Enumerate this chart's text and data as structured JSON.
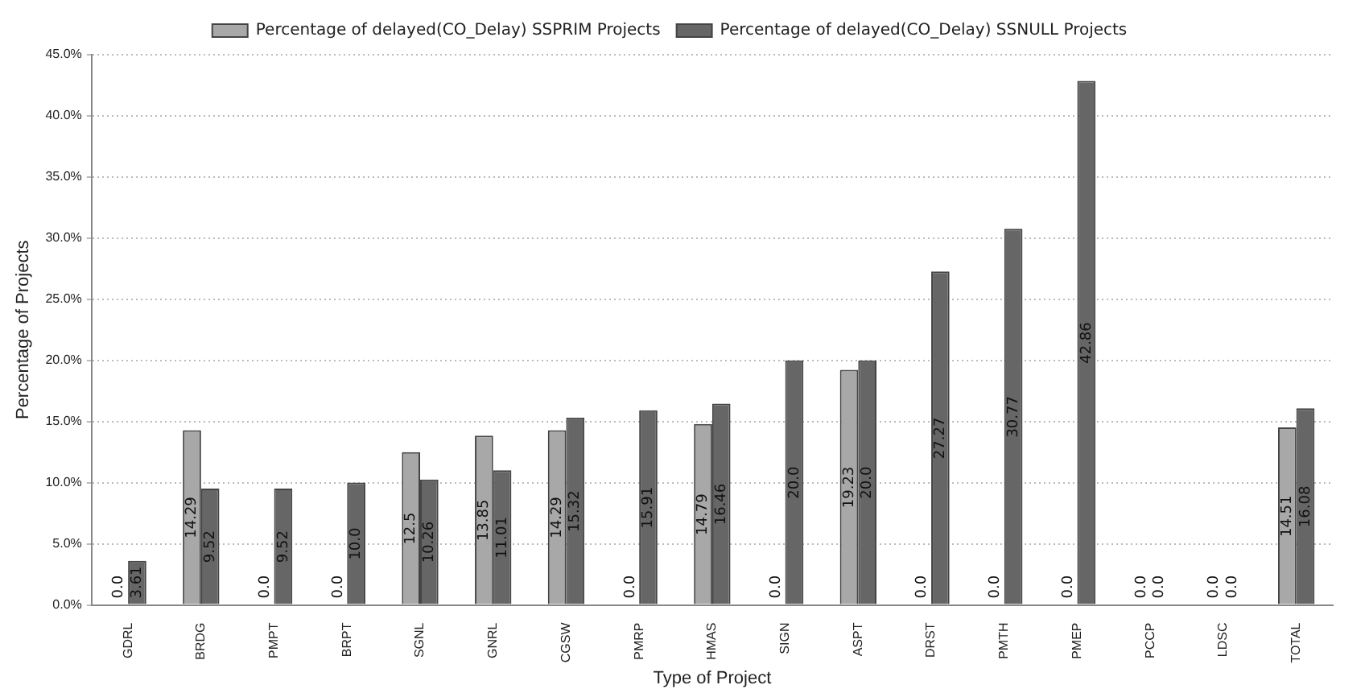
{
  "chart_data": {
    "type": "bar",
    "xlabel": "Type of Project",
    "ylabel": "Percentage of Projects",
    "categories": [
      "GDRL",
      "BRDG",
      "PMPT",
      "BRPT",
      "SGNL",
      "GNRL",
      "CGSW",
      "PMRP",
      "HMAS",
      "SIGN",
      "ASPT",
      "DRST",
      "PMTH",
      "PMEP",
      "PCCP",
      "LDSC",
      "TOTAL"
    ],
    "series": [
      {
        "name": "Percentage of delayed(CO_Delay) SSPRIM Projects",
        "color": "#a8a8a8",
        "values": [
          0,
          14.29,
          0,
          0,
          12.5,
          13.85,
          14.29,
          0,
          14.79,
          0,
          19.23,
          0,
          0,
          0,
          0,
          0,
          14.51
        ],
        "value_labels": [
          "0.0",
          "14.29",
          "0.0",
          "0.0",
          "12.5",
          "13.85",
          "14.29",
          "0.0",
          "14.79",
          "0.0",
          "19.23",
          "0.0",
          "0.0",
          "0.0",
          "0.0",
          "0.0",
          "14.51"
        ]
      },
      {
        "name": "Percentage of delayed(CO_Delay) SSNULL Projects",
        "color": "#666666",
        "values": [
          3.61,
          9.52,
          9.52,
          10.0,
          10.26,
          11.01,
          15.32,
          15.91,
          16.46,
          20.0,
          20.0,
          27.27,
          30.77,
          42.86,
          0,
          0,
          16.08
        ],
        "value_labels": [
          "3.61",
          "9.52",
          "9.52",
          "10.0",
          "10.26",
          "11.01",
          "15.32",
          "15.91",
          "16.46",
          "20.0",
          "20.0",
          "27.27",
          "30.77",
          "42.86",
          "0.0",
          "0.0",
          "16.08"
        ]
      }
    ],
    "ylim": [
      0,
      45
    ],
    "yticks": [
      {
        "value": 0,
        "label": "0.0%"
      },
      {
        "value": 5,
        "label": "5.0%"
      },
      {
        "value": 10,
        "label": "10.0%"
      },
      {
        "value": 15,
        "label": "15.0%"
      },
      {
        "value": 20,
        "label": "20.0%"
      },
      {
        "value": 25,
        "label": "25.0%"
      },
      {
        "value": 30,
        "label": "30.0%"
      },
      {
        "value": 35,
        "label": "35.0%"
      },
      {
        "value": 40,
        "label": "40.0%"
      },
      {
        "value": 45,
        "label": "45.0%"
      }
    ],
    "grid": "y",
    "legend": "top",
    "line_style": "dotted"
  }
}
